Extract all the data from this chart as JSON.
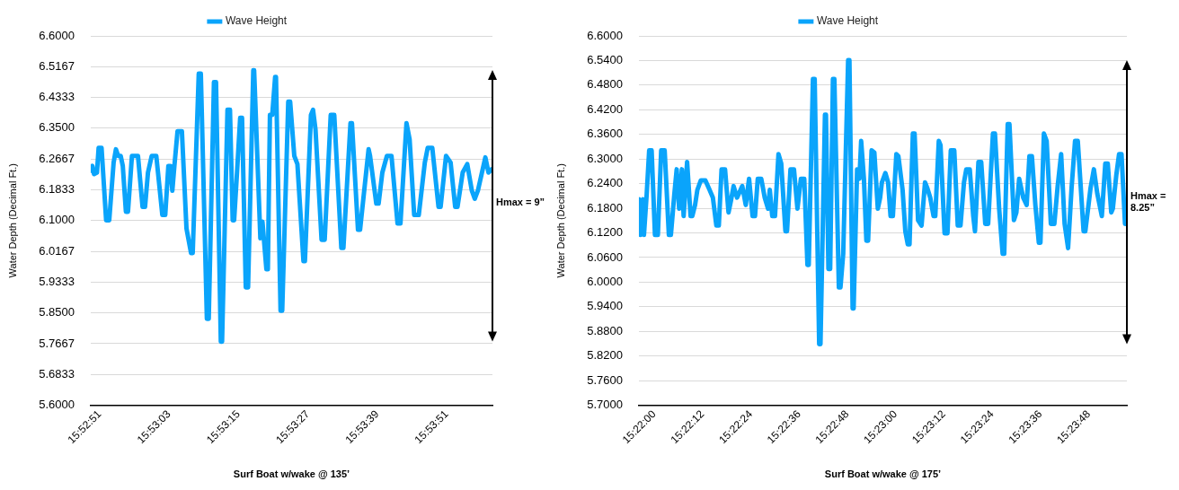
{
  "chart_data": [
    {
      "type": "line",
      "xlabel": "Surf Boat w/wake @ 135’",
      "ylabel": "Water Depth (Decimal Ft.)",
      "grid": "y",
      "legend": "top",
      "marker": "none",
      "annotations": [
        "Hmax = 9”"
      ],
      "xlim": [
        15.8804,
        15.8997
      ],
      "xticks": [
        {
          "value": 15.880833,
          "label": "15:52:51"
        },
        {
          "value": 15.884167,
          "label": "15:53:03"
        },
        {
          "value": 15.8875,
          "label": "15:53:15"
        },
        {
          "value": 15.890833,
          "label": "15:53:27"
        },
        {
          "value": 15.894167,
          "label": "15:53:39"
        },
        {
          "value": 15.8975,
          "label": "15:53:51"
        }
      ],
      "ylim": [
        5.6,
        6.6
      ],
      "yticks": [
        {
          "value": 5.6,
          "label": "5.6000"
        },
        {
          "value": 5.683333,
          "label": "5.6833"
        },
        {
          "value": 5.766667,
          "label": "5.7667"
        },
        {
          "value": 5.85,
          "label": "5.8500"
        },
        {
          "value": 5.933333,
          "label": "5.9333"
        },
        {
          "value": 6.016667,
          "label": "6.0167"
        },
        {
          "value": 6.1,
          "label": "6.1000"
        },
        {
          "value": 6.183333,
          "label": "6.1833"
        },
        {
          "value": 6.266667,
          "label": "6.2667"
        },
        {
          "value": 6.35,
          "label": "6.3500"
        },
        {
          "value": 6.433333,
          "label": "6.4333"
        },
        {
          "value": 6.516667,
          "label": "6.5167"
        },
        {
          "value": 6.6,
          "label": "6.6000"
        }
      ],
      "series": [
        {
          "name": "Wave Height",
          "color": "#0aa4fb",
          "x": [
            15.88041,
            15.88048,
            15.88056,
            15.8807,
            15.88078,
            15.88092,
            15.88114,
            15.88129,
            15.8815,
            15.88161,
            15.88172,
            15.88184,
            15.88194,
            15.88209,
            15.88219,
            15.88238,
            15.88267,
            15.88289,
            15.88301,
            15.88315,
            15.88333,
            15.88355,
            15.88384,
            15.88398,
            15.88413,
            15.88423,
            15.88432,
            15.88442,
            15.88457,
            15.88478,
            15.885,
            15.88522,
            15.8853,
            15.88559,
            15.88569,
            15.88598,
            15.88607,
            15.88632,
            15.88642,
            15.88665,
            15.88671,
            15.88697,
            15.88709,
            15.88722,
            15.88729,
            15.88741,
            15.88758,
            15.88767,
            15.88785,
            15.88796,
            15.88821,
            15.88825,
            15.88855,
            15.88865,
            15.88884,
            15.88891,
            15.88901,
            15.88912,
            15.88926,
            15.8893,
            15.88952,
            15.8896,
            15.88989,
            15.88998,
            15.89018,
            15.89033,
            15.89062,
            15.89069,
            15.89098,
            15.89108,
            15.8912,
            15.89149,
            15.89164,
            15.89193,
            15.8921,
            15.89244,
            15.89254,
            15.89288,
            15.89295,
            15.89324,
            15.89334,
            15.89375,
            15.89382,
            15.89412,
            15.89423,
            15.89441,
            15.89463,
            15.89485,
            15.89514,
            15.89528,
            15.89557,
            15.89572,
            15.89594,
            15.89616,
            15.89645,
            15.89659,
            15.89681,
            15.89711,
            15.89721,
            15.89747,
            15.89769,
            15.89791,
            15.89802,
            15.89827,
            15.89849,
            15.89871,
            15.89885,
            15.899,
            15.89936,
            15.89951,
            15.89966
          ],
          "values": [
            6.235,
            6.248,
            6.226,
            6.23,
            6.297,
            6.297,
            6.101,
            6.101,
            6.257,
            6.293,
            6.275,
            6.275,
            6.248,
            6.124,
            6.124,
            6.275,
            6.275,
            6.137,
            6.137,
            6.23,
            6.275,
            6.275,
            6.115,
            6.115,
            6.248,
            6.248,
            6.181,
            6.248,
            6.342,
            6.342,
            6.079,
            6.012,
            6.012,
            6.498,
            6.498,
            5.834,
            5.834,
            6.475,
            6.475,
            5.772,
            5.772,
            6.4,
            6.4,
            6.101,
            6.101,
            6.213,
            6.378,
            6.378,
            5.919,
            5.919,
            6.507,
            6.507,
            6.052,
            6.097,
            5.968,
            5.968,
            6.386,
            6.386,
            6.489,
            6.489,
            5.856,
            5.856,
            6.422,
            6.422,
            6.275,
            6.253,
            5.99,
            5.99,
            6.386,
            6.4,
            6.346,
            6.048,
            6.048,
            6.386,
            6.386,
            6.026,
            6.026,
            6.364,
            6.364,
            6.075,
            6.075,
            6.293,
            6.275,
            6.146,
            6.146,
            6.23,
            6.275,
            6.275,
            6.092,
            6.092,
            6.364,
            6.32,
            6.115,
            6.115,
            6.257,
            6.297,
            6.297,
            6.137,
            6.137,
            6.275,
            6.257,
            6.137,
            6.137,
            6.23,
            6.253,
            6.181,
            6.159,
            6.181,
            6.271,
            6.23,
            6.239
          ]
        }
      ]
    },
    {
      "type": "line",
      "xlabel": "Surf Boat w/wake @ 175’",
      "ylabel": "Water Depth (Decimal Ft.)",
      "grid": "y",
      "legend": "top",
      "marker": "none",
      "annotations": [
        "Hmax = 8.25”"
      ],
      "xlim": [
        15.3656,
        15.3993
      ],
      "xticks": [
        {
          "value": 15.366667,
          "label": "15:22:00"
        },
        {
          "value": 15.37,
          "label": "15:22:12"
        },
        {
          "value": 15.373333,
          "label": "15:22:24"
        },
        {
          "value": 15.376667,
          "label": "15:22:36"
        },
        {
          "value": 15.38,
          "label": "15:22:48"
        },
        {
          "value": 15.383333,
          "label": "15:23:00"
        },
        {
          "value": 15.386667,
          "label": "15:23:12"
        },
        {
          "value": 15.39,
          "label": "15:23:24"
        },
        {
          "value": 15.393333,
          "label": "15:23:36"
        },
        {
          "value": 15.396667,
          "label": "15:23:48"
        }
      ],
      "ylim": [
        5.7,
        6.6
      ],
      "yticks": [
        {
          "value": 5.7,
          "label": "5.7000"
        },
        {
          "value": 5.76,
          "label": "5.7600"
        },
        {
          "value": 5.82,
          "label": "5.8200"
        },
        {
          "value": 5.88,
          "label": "5.8800"
        },
        {
          "value": 5.94,
          "label": "5.9400"
        },
        {
          "value": 6.0,
          "label": "6.0000"
        },
        {
          "value": 6.06,
          "label": "6.0600"
        },
        {
          "value": 6.12,
          "label": "6.1200"
        },
        {
          "value": 6.18,
          "label": "6.1800"
        },
        {
          "value": 6.24,
          "label": "6.2400"
        },
        {
          "value": 6.3,
          "label": "6.3000"
        },
        {
          "value": 6.36,
          "label": "6.3600"
        },
        {
          "value": 6.42,
          "label": "6.4200"
        },
        {
          "value": 6.48,
          "label": "6.4800"
        },
        {
          "value": 6.54,
          "label": "6.5400"
        },
        {
          "value": 6.6,
          "label": "6.6000"
        }
      ],
      "series": [
        {
          "name": "Wave Height",
          "color": "#0aa4fb",
          "x": [
            15.3656,
            15.36571,
            15.36588,
            15.36595,
            15.36614,
            15.36631,
            15.36648,
            15.36671,
            15.36691,
            15.36714,
            15.36738,
            15.36767,
            15.36781,
            15.36805,
            15.36821,
            15.36838,
            15.36857,
            15.36869,
            15.36893,
            15.36917,
            15.36929,
            15.36948,
            15.36964,
            15.36988,
            15.37019,
            15.37048,
            15.37071,
            15.37095,
            15.37112,
            15.37131,
            15.37155,
            15.37179,
            15.37195,
            15.37214,
            15.37238,
            15.37274,
            15.37298,
            15.37321,
            15.37345,
            15.37362,
            15.37381,
            15.37405,
            15.37429,
            15.37452,
            15.37464,
            15.37481,
            15.375,
            15.37524,
            15.37543,
            15.37572,
            15.37583,
            15.37607,
            15.37631,
            15.37655,
            15.37679,
            15.37702,
            15.37724,
            15.37733,
            15.37762,
            15.37774,
            15.37805,
            15.37814,
            15.37845,
            15.37852,
            15.37869,
            15.37881,
            15.379,
            15.3791,
            15.37941,
            15.37952,
            15.37971,
            15.38005,
            15.38014,
            15.38036,
            15.38043,
            15.38067,
            15.38083,
            15.38095,
            15.38114,
            15.38131,
            15.38143,
            15.38167,
            15.38186,
            15.3821,
            15.38226,
            15.38238,
            15.38262,
            15.38281,
            15.38298,
            15.38314,
            15.38338,
            15.38352,
            15.38381,
            15.384,
            15.38417,
            15.38429,
            15.38452,
            15.38464,
            15.38488,
            15.38512,
            15.38536,
            15.38552,
            15.38572,
            15.38595,
            15.38607,
            15.38631,
            15.38643,
            15.38671,
            15.38691,
            15.38714,
            15.38738,
            15.38762,
            15.38781,
            15.38805,
            15.38821,
            15.38845,
            15.38869,
            15.38881,
            15.38905,
            15.38924,
            15.38952,
            15.38972,
            15.39005,
            15.39019,
            15.39048,
            15.39072,
            15.39083,
            15.39107,
            15.39119,
            15.3915,
            15.39167,
            15.39186,
            15.39214,
            15.39238,
            15.39257,
            15.39274,
            15.39298,
            15.39322,
            15.39333,
            15.39357,
            15.39376,
            15.39405,
            15.39429,
            15.39452,
            15.39476,
            15.395,
            15.39524,
            15.39548,
            15.39572,
            15.39591,
            15.39631,
            15.39643,
            15.39679,
            15.39702,
            15.39726,
            15.39757,
            15.39781,
            15.39798,
            15.39822,
            15.39833,
            15.39857,
            15.39876,
            15.39893,
            15.39917,
            15.39929
          ],
          "values": [
            6.202,
            6.115,
            6.202,
            6.115,
            6.215,
            6.321,
            6.321,
            6.115,
            6.115,
            6.321,
            6.321,
            6.115,
            6.115,
            6.215,
            6.275,
            6.179,
            6.275,
            6.161,
            6.293,
            6.161,
            6.161,
            6.188,
            6.225,
            6.248,
            6.248,
            6.225,
            6.206,
            6.138,
            6.138,
            6.275,
            6.275,
            6.17,
            6.197,
            6.234,
            6.206,
            6.234,
            6.188,
            6.252,
            6.161,
            6.161,
            6.252,
            6.252,
            6.206,
            6.179,
            6.225,
            6.161,
            6.161,
            6.312,
            6.289,
            6.124,
            6.124,
            6.275,
            6.275,
            6.179,
            6.252,
            6.252,
            6.042,
            6.042,
            6.495,
            6.495,
            5.849,
            5.849,
            6.408,
            6.408,
            6.032,
            6.032,
            6.495,
            6.495,
            5.987,
            5.987,
            6.069,
            6.541,
            6.541,
            5.936,
            5.936,
            6.275,
            6.252,
            6.344,
            6.252,
            6.101,
            6.101,
            6.321,
            6.316,
            6.179,
            6.206,
            6.243,
            6.266,
            6.243,
            6.161,
            6.161,
            6.312,
            6.307,
            6.225,
            6.124,
            6.092,
            6.092,
            6.362,
            6.362,
            6.151,
            6.138,
            6.243,
            6.229,
            6.206,
            6.161,
            6.161,
            6.344,
            6.334,
            6.119,
            6.119,
            6.321,
            6.321,
            6.138,
            6.138,
            6.243,
            6.275,
            6.275,
            6.161,
            6.124,
            6.293,
            6.293,
            6.142,
            6.142,
            6.362,
            6.362,
            6.179,
            6.069,
            6.069,
            6.385,
            6.385,
            6.151,
            6.17,
            6.252,
            6.206,
            6.188,
            6.307,
            6.307,
            6.188,
            6.096,
            6.096,
            6.362,
            6.344,
            6.142,
            6.142,
            6.234,
            6.312,
            6.142,
            6.083,
            6.229,
            6.344,
            6.344,
            6.124,
            6.124,
            6.229,
            6.275,
            6.215,
            6.161,
            6.289,
            6.289,
            6.17,
            6.179,
            6.261,
            6.312,
            6.312,
            6.142,
            6.142
          ]
        }
      ]
    }
  ]
}
